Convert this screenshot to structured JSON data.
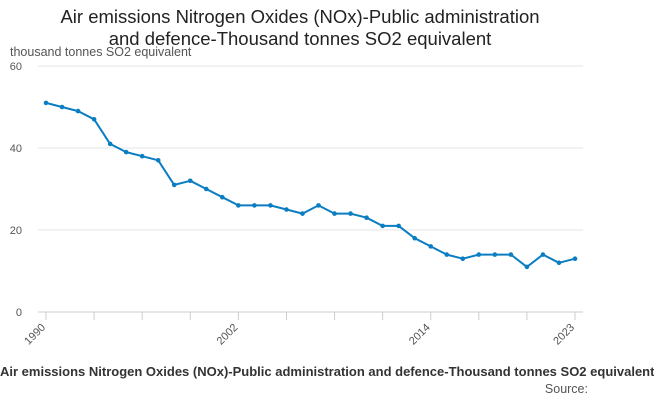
{
  "chart_data": {
    "type": "line",
    "title_lines": [
      "Air emissions Nitrogen Oxides (NOx)-Public administration",
      "and defence-Thousand tonnes SO2 equivalent"
    ],
    "ylabel": "thousand tonnes SO2 equivalent",
    "caption": "Air emissions Nitrogen Oxides (NOx)-Public administration and defence-Thousand tonnes SO2 equivalent",
    "source_label": "Source:",
    "ylim": [
      0,
      60
    ],
    "yticks": [
      0,
      20,
      40,
      60
    ],
    "xlim": [
      1990,
      2023
    ],
    "xtick_labels": [
      1990,
      2002,
      2014,
      2023
    ],
    "grid": true,
    "legend": "none",
    "line_color": "#0b7dc1",
    "series": [
      {
        "x": [
          1990,
          1991,
          1992,
          1993,
          1994,
          1995,
          1996,
          1997,
          1998,
          1999,
          2000,
          2001,
          2002,
          2003,
          2004,
          2005,
          2006,
          2007,
          2008,
          2009,
          2010,
          2011,
          2012,
          2013,
          2014,
          2015,
          2016,
          2017,
          2018,
          2019,
          2020,
          2021,
          2022,
          2023
        ],
        "values": [
          51,
          50,
          49,
          47,
          41,
          39,
          38,
          37,
          31,
          32,
          30,
          28,
          26,
          26,
          26,
          25,
          24,
          26,
          24,
          24,
          23,
          21,
          21,
          18,
          16,
          14,
          13,
          14,
          14,
          14,
          11,
          14,
          12,
          13
        ]
      }
    ]
  }
}
